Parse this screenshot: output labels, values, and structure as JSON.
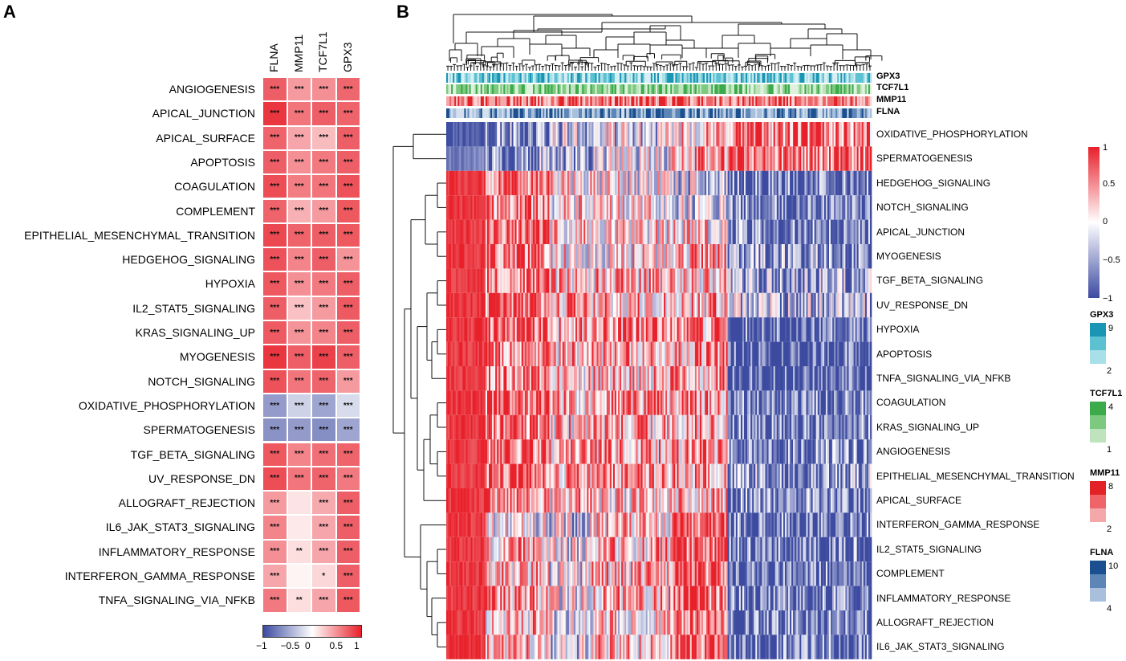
{
  "panels": {
    "a_label": "A",
    "b_label": "B"
  },
  "panel_a": {
    "columns": [
      "FLNA",
      "MMP11",
      "TCF7L1",
      "GPX3"
    ],
    "rows": [
      {
        "label": "ANGIOGENESIS",
        "values": [
          0.72,
          0.45,
          0.5,
          0.68
        ],
        "sig": [
          "***",
          "***",
          "***",
          "***"
        ]
      },
      {
        "label": "APICAL_JUNCTION",
        "values": [
          0.9,
          0.62,
          0.72,
          0.7
        ],
        "sig": [
          "***",
          "***",
          "***",
          "***"
        ]
      },
      {
        "label": "APICAL_SURFACE",
        "values": [
          0.7,
          0.4,
          0.3,
          0.72
        ],
        "sig": [
          "***",
          "***",
          "***",
          "***"
        ]
      },
      {
        "label": "APOPTOSIS",
        "values": [
          0.72,
          0.5,
          0.6,
          0.72
        ],
        "sig": [
          "***",
          "***",
          "***",
          "***"
        ]
      },
      {
        "label": "COAGULATION",
        "values": [
          0.8,
          0.58,
          0.62,
          0.78
        ],
        "sig": [
          "***",
          "***",
          "***",
          "***"
        ]
      },
      {
        "label": "COMPLEMENT",
        "values": [
          0.7,
          0.35,
          0.45,
          0.75
        ],
        "sig": [
          "***",
          "***",
          "***",
          "***"
        ]
      },
      {
        "label": "EPITHELIAL_MESENCHYMAL_TRANSITION",
        "values": [
          0.82,
          0.7,
          0.72,
          0.75
        ],
        "sig": [
          "***",
          "***",
          "***",
          "***"
        ]
      },
      {
        "label": "HEDGEHOG_SIGNALING",
        "values": [
          0.78,
          0.55,
          0.72,
          0.48
        ],
        "sig": [
          "***",
          "***",
          "***",
          "***"
        ]
      },
      {
        "label": "HYPOXIA",
        "values": [
          0.75,
          0.5,
          0.6,
          0.72
        ],
        "sig": [
          "***",
          "***",
          "***",
          "***"
        ]
      },
      {
        "label": "IL2_STAT5_SIGNALING",
        "values": [
          0.72,
          0.28,
          0.45,
          0.74
        ],
        "sig": [
          "***",
          "***",
          "***",
          "***"
        ]
      },
      {
        "label": "KRAS_SIGNALING_UP",
        "values": [
          0.74,
          0.48,
          0.55,
          0.72
        ],
        "sig": [
          "***",
          "***",
          "***",
          "***"
        ]
      },
      {
        "label": "MYOGENESIS",
        "values": [
          0.9,
          0.72,
          0.85,
          0.72
        ],
        "sig": [
          "***",
          "***",
          "***",
          "***"
        ]
      },
      {
        "label": "NOTCH_SIGNALING",
        "values": [
          0.78,
          0.62,
          0.7,
          0.45
        ],
        "sig": [
          "***",
          "***",
          "***",
          "***"
        ]
      },
      {
        "label": "OXIDATIVE_PHOSPHORYLATION",
        "values": [
          -0.55,
          -0.25,
          -0.5,
          -0.2
        ],
        "sig": [
          "***",
          "***",
          "***",
          "***"
        ]
      },
      {
        "label": "SPERMATOGENESIS",
        "values": [
          -0.6,
          -0.55,
          -0.62,
          -0.5
        ],
        "sig": [
          "***",
          "***",
          "***",
          "***"
        ]
      },
      {
        "label": "TGF_BETA_SIGNALING",
        "values": [
          0.75,
          0.55,
          0.65,
          0.7
        ],
        "sig": [
          "***",
          "***",
          "***",
          "***"
        ]
      },
      {
        "label": "UV_RESPONSE_DN",
        "values": [
          0.8,
          0.62,
          0.7,
          0.6
        ],
        "sig": [
          "***",
          "***",
          "***",
          "***"
        ]
      },
      {
        "label": "ALLOGRAFT_REJECTION",
        "values": [
          0.45,
          0.12,
          0.38,
          0.72
        ],
        "sig": [
          "***",
          "",
          "***",
          "***"
        ]
      },
      {
        "label": "IL6_JAK_STAT3_SIGNALING",
        "values": [
          0.55,
          0.1,
          0.4,
          0.72
        ],
        "sig": [
          "***",
          "",
          "***",
          "***"
        ]
      },
      {
        "label": "INFLAMMATORY_RESPONSE",
        "values": [
          0.5,
          0.15,
          0.4,
          0.72
        ],
        "sig": [
          "***",
          "**",
          "***",
          "***"
        ]
      },
      {
        "label": "INTERFERON_GAMMA_RESPONSE",
        "values": [
          0.4,
          0.05,
          0.18,
          0.72
        ],
        "sig": [
          "***",
          "",
          "*",
          "***"
        ]
      },
      {
        "label": "TNFA_SIGNALING_VIA_NFKB",
        "values": [
          0.6,
          0.15,
          0.4,
          0.75
        ],
        "sig": [
          "***",
          "**",
          "***",
          "***"
        ]
      }
    ],
    "colorbar": {
      "ticks": [
        "−1",
        "−0.5",
        "0",
        "0.5",
        "1"
      ]
    }
  },
  "panel_b": {
    "annotation_tracks": [
      "GPX3",
      "TCF7L1",
      "MMP11",
      "FLNA"
    ],
    "rows": [
      "OXIDATIVE_PHOSPHORYLATION",
      "SPERMATOGENESIS",
      "HEDGEHOG_SIGNALING",
      "NOTCH_SIGNALING",
      "APICAL_JUNCTION",
      "MYOGENESIS",
      "TGF_BETA_SIGNALING",
      "UV_RESPONSE_DN",
      "HYPOXIA",
      "APOPTOSIS",
      "TNFA_SIGNALING_VIA_NFKB",
      "COAGULATION",
      "KRAS_SIGNALING_UP",
      "ANGIOGENESIS",
      "EPITHELIAL_MESENCHYMAL_TRANSITION",
      "APICAL_SURFACE",
      "INTERFERON_GAMMA_RESPONSE",
      "IL2_STAT5_SIGNALING",
      "COMPLEMENT",
      "INFLAMMATORY_RESPONSE",
      "ALLOGRAFT_REJECTION",
      "IL6_JAK_STAT3_SIGNALING"
    ],
    "legend_main": {
      "ticks": [
        "1",
        "0.5",
        "0",
        "−0.5",
        "−1"
      ]
    },
    "legend_gpx3": {
      "title": "GPX3",
      "max": "9",
      "min": "2",
      "colors": [
        "#1a96b4",
        "#5cc1d0",
        "#a9dfe8"
      ]
    },
    "legend_tcf7l1": {
      "title": "TCF7L1",
      "max": "4",
      "min": "1",
      "colors": [
        "#3aaa4a",
        "#7dc97f",
        "#bfe4bd"
      ]
    },
    "legend_mmp11": {
      "title": "MMP11",
      "max": "8",
      "min": "2",
      "colors": [
        "#e32228",
        "#ee6468",
        "#f5a8aa"
      ]
    },
    "legend_flna": {
      "title": "FLNA",
      "max": "10",
      "min": "4",
      "colors": [
        "#1c4f8f",
        "#5d86b7",
        "#a8c0dc"
      ]
    }
  },
  "chart_data": [
    {
      "type": "heatmap",
      "title": "",
      "x": [
        "FLNA",
        "MMP11",
        "TCF7L1",
        "GPX3"
      ],
      "y": [
        "ANGIOGENESIS",
        "APICAL_JUNCTION",
        "APICAL_SURFACE",
        "APOPTOSIS",
        "COAGULATION",
        "COMPLEMENT",
        "EPITHELIAL_MESENCHYMAL_TRANSITION",
        "HEDGEHOG_SIGNALING",
        "HYPOXIA",
        "IL2_STAT5_SIGNALING",
        "KRAS_SIGNALING_UP",
        "MYOGENESIS",
        "NOTCH_SIGNALING",
        "OXIDATIVE_PHOSPHORYLATION",
        "SPERMATOGENESIS",
        "TGF_BETA_SIGNALING",
        "UV_RESPONSE_DN",
        "ALLOGRAFT_REJECTION",
        "IL6_JAK_STAT3_SIGNALING",
        "INFLAMMATORY_RESPONSE",
        "INTERFERON_GAMMA_RESPONSE",
        "TNFA_SIGNALING_VIA_NFKB"
      ],
      "value_range": [
        -1,
        1
      ],
      "note": "cell values correlation coefficients, listed in panel_a.rows"
    },
    {
      "type": "heatmap",
      "title": "",
      "note": "clustered per-sample pathway score heatmap, range -1 to 1, with GPX3/TCF7L1/MMP11/FLNA annotation tracks",
      "value_range": [
        -1,
        1
      ]
    }
  ]
}
